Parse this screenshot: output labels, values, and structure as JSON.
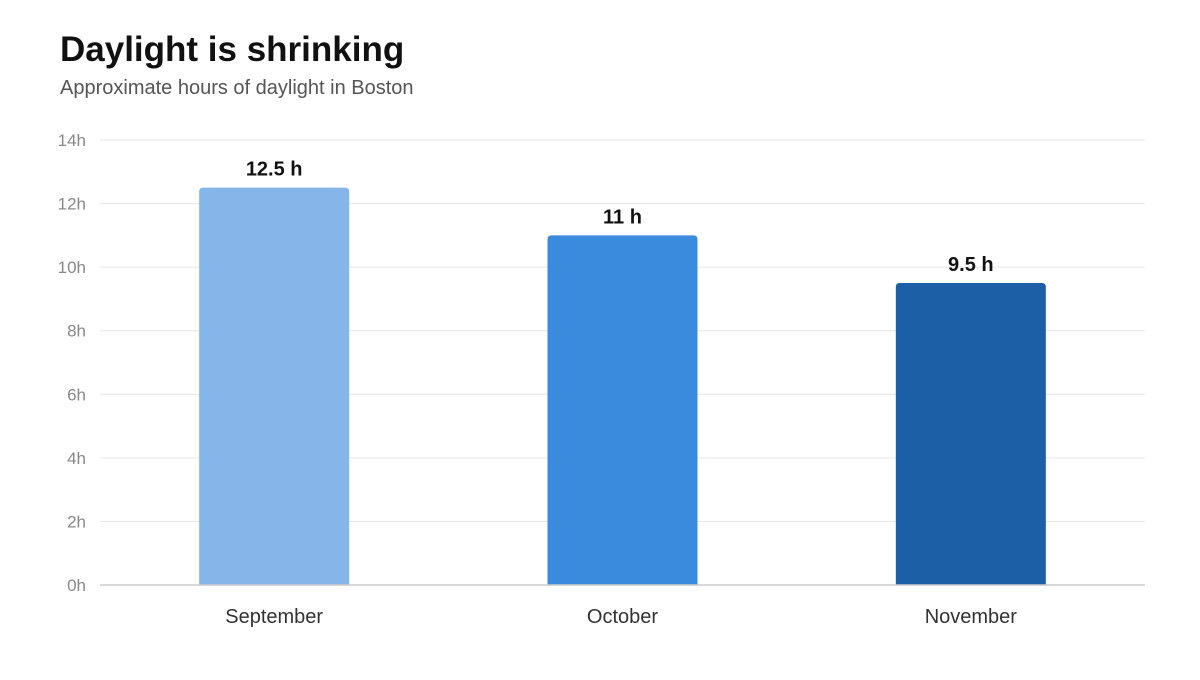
{
  "chart_data": {
    "type": "bar",
    "title": "Daylight is shrinking",
    "subtitle": "Approximate hours of daylight in Boston",
    "categories": [
      "September",
      "October",
      "November"
    ],
    "values": [
      12.5,
      11,
      9.5
    ],
    "value_labels": [
      "12.5 h",
      "11 h",
      "9.5 h"
    ],
    "colors": [
      "#85b5e9",
      "#3a8ade",
      "#1c5fa6"
    ],
    "yticks": [
      0,
      2,
      4,
      6,
      8,
      10,
      12,
      14
    ],
    "ytick_labels": [
      "0h",
      "2h",
      "4h",
      "6h",
      "8h",
      "10h",
      "12h",
      "14h"
    ],
    "ylim": [
      0,
      14
    ],
    "xlabel": "",
    "ylabel": "",
    "grid": true,
    "legend": "none"
  }
}
